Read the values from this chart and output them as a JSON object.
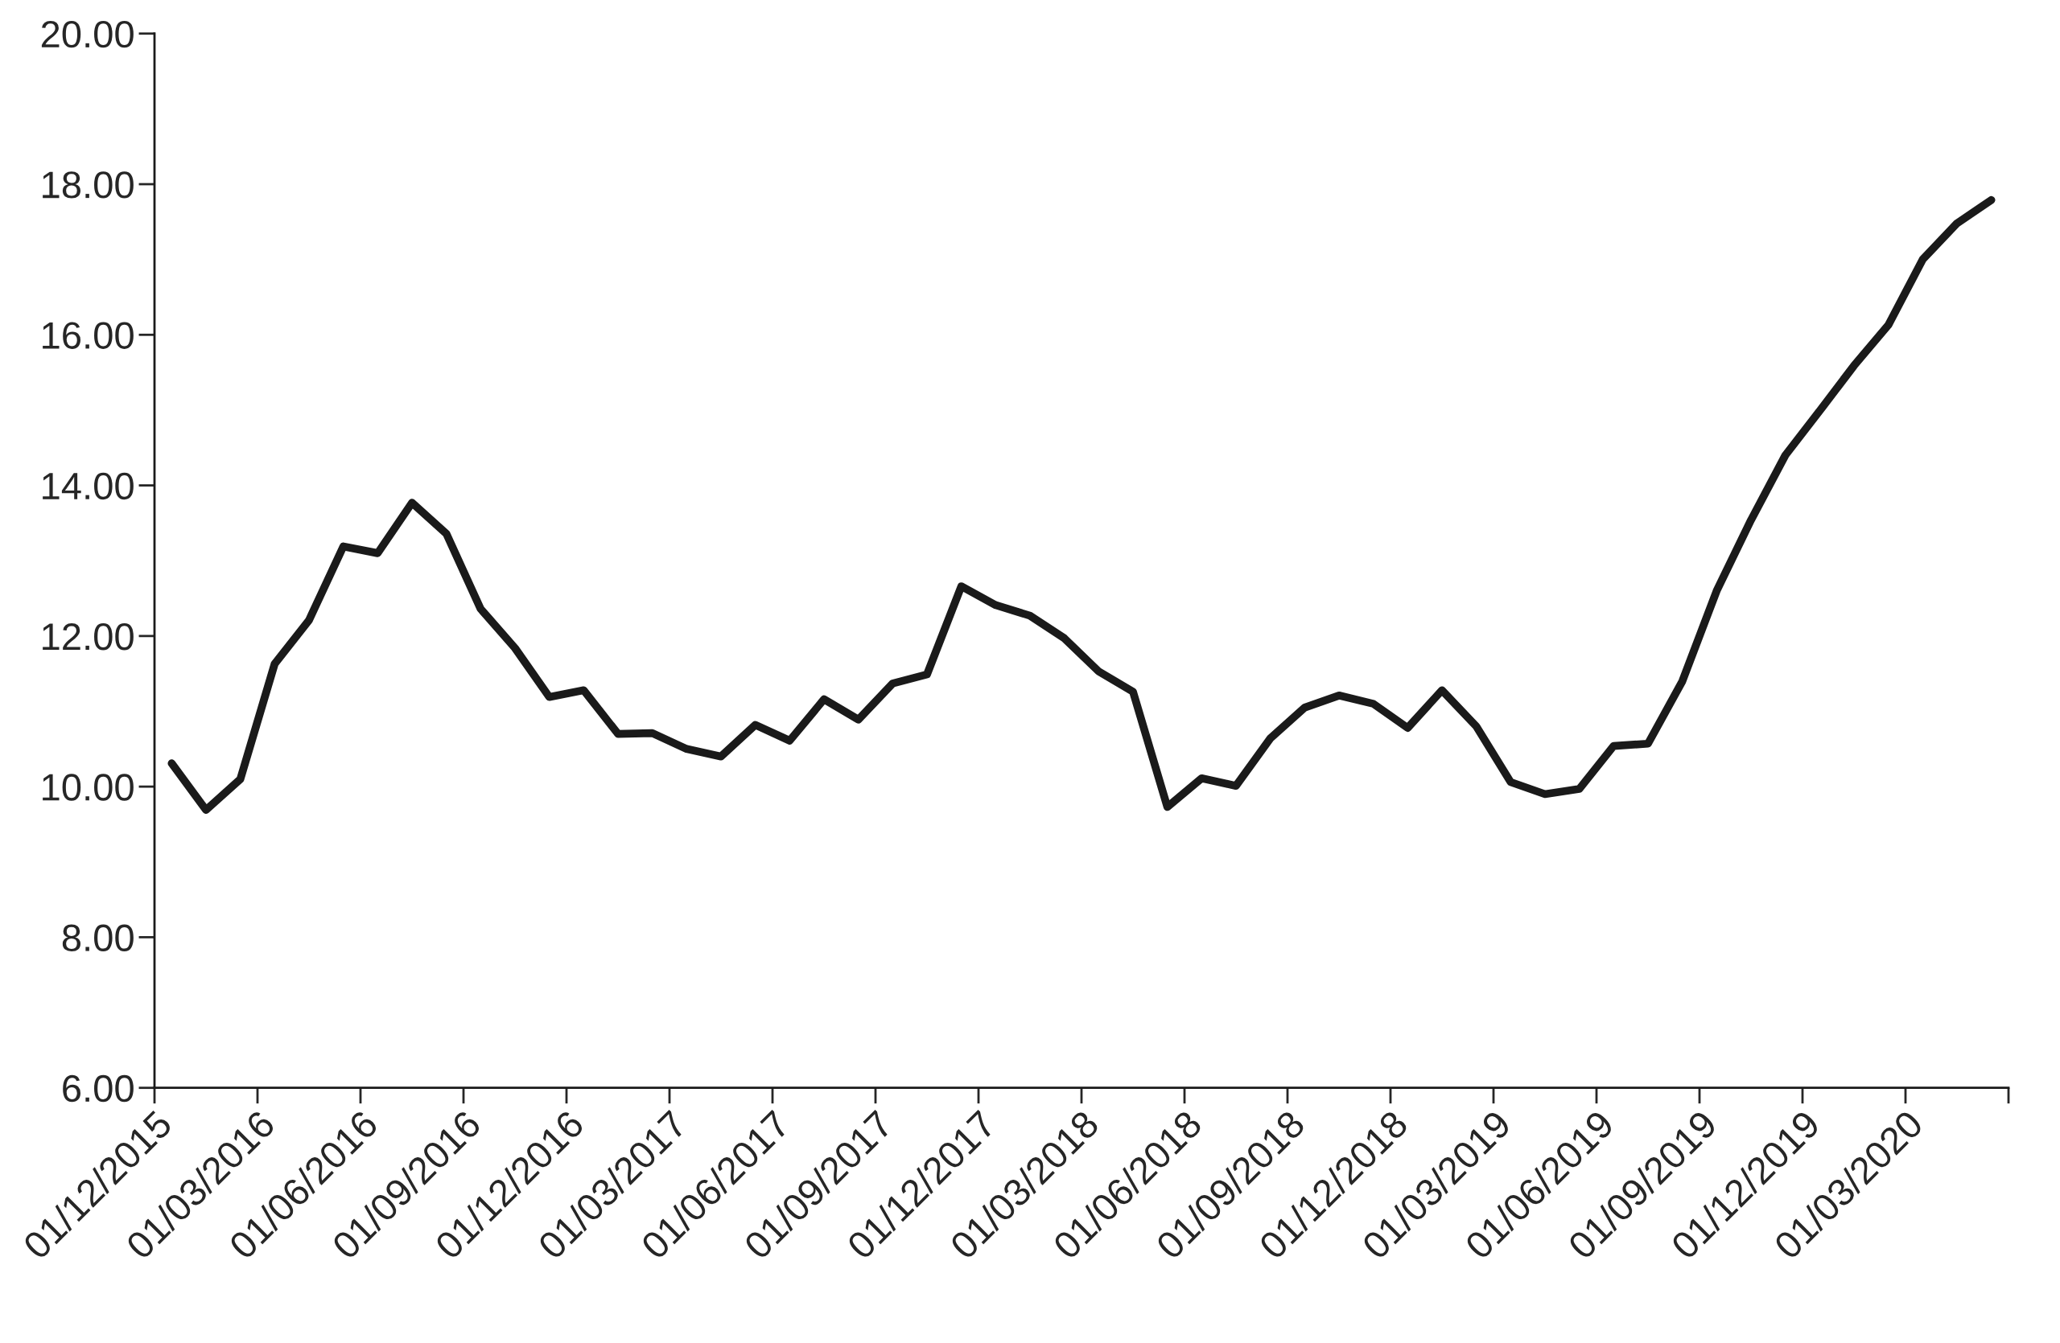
{
  "chart_data": {
    "type": "line",
    "categories": [
      "01/12/2015",
      null,
      null,
      "01/03/2016",
      null,
      null,
      "01/06/2016",
      null,
      null,
      "01/09/2016",
      null,
      null,
      "01/12/2016",
      null,
      null,
      "01/03/2017",
      null,
      null,
      "01/06/2017",
      null,
      null,
      "01/09/2017",
      null,
      null,
      "01/12/2017",
      null,
      null,
      "01/03/2018",
      null,
      null,
      "01/06/2018",
      null,
      null,
      "01/09/2018",
      null,
      null,
      "01/12/2018",
      null,
      null,
      "01/03/2019",
      null,
      null,
      "01/06/2019",
      null,
      null,
      "01/09/2019",
      null,
      null,
      "01/12/2019",
      null,
      null,
      "01/03/2020",
      null,
      null
    ],
    "series": [
      {
        "color": "#1a1a1a",
        "values": [
          10.31,
          9.69,
          10.1,
          11.63,
          12.21,
          13.19,
          13.1,
          13.77,
          13.36,
          12.36,
          11.84,
          11.19,
          11.28,
          10.7,
          10.71,
          10.5,
          10.4,
          10.82,
          10.61,
          11.16,
          10.89,
          11.37,
          11.49,
          12.66,
          12.41,
          12.27,
          11.97,
          11.53,
          11.26,
          9.73,
          10.11,
          10.01,
          10.64,
          11.05,
          11.21,
          11.1,
          10.78,
          11.28,
          10.8,
          10.06,
          9.9,
          9.97,
          10.54,
          10.57,
          11.4,
          12.6,
          13.54,
          14.4,
          14.99,
          15.59,
          16.13,
          17.0,
          17.48,
          17.79
        ]
      }
    ],
    "ylim": [
      6,
      20
    ],
    "yticks": [
      {
        "value": 6,
        "label": "6.00"
      },
      {
        "value": 8,
        "label": "8.00"
      },
      {
        "value": 10,
        "label": "10.00"
      },
      {
        "value": 12,
        "label": "12.00"
      },
      {
        "value": 14,
        "label": "14.00"
      },
      {
        "value": 16,
        "label": "16.00"
      },
      {
        "value": 18,
        "label": "18.00"
      },
      {
        "value": 20,
        "label": "20.00"
      }
    ],
    "grid": false,
    "legend": false,
    "marker": "none",
    "line_style": "solid"
  }
}
